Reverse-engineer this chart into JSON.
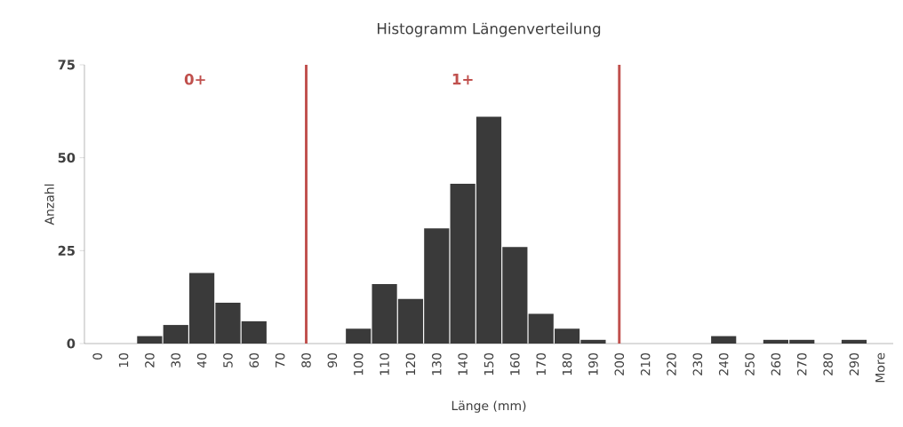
{
  "chart_data": {
    "type": "bar",
    "title": "Histogramm Längenverteilung",
    "xlabel": "Länge (mm)",
    "ylabel": "Anzahl",
    "categories": [
      "0",
      "10",
      "20",
      "30",
      "40",
      "50",
      "60",
      "70",
      "80",
      "90",
      "100",
      "110",
      "120",
      "130",
      "140",
      "150",
      "160",
      "170",
      "180",
      "190",
      "200",
      "210",
      "220",
      "230",
      "240",
      "250",
      "260",
      "270",
      "280",
      "290",
      "More"
    ],
    "values": [
      0,
      0,
      2,
      5,
      19,
      11,
      6,
      0,
      0,
      0,
      4,
      16,
      12,
      31,
      43,
      61,
      26,
      8,
      4,
      1,
      0,
      0,
      0,
      0,
      2,
      0,
      1,
      1,
      0,
      1,
      0
    ],
    "color": "#3a3a3a",
    "ylim": [
      0,
      75
    ],
    "yticks": [
      0,
      25,
      50,
      75
    ],
    "ref_lines": [
      {
        "axis": "x",
        "value": "80",
        "color": "#c0504d"
      },
      {
        "axis": "x",
        "value": "200",
        "color": "#c0504d"
      }
    ],
    "annotations": [
      "0+",
      "1+"
    ]
  }
}
